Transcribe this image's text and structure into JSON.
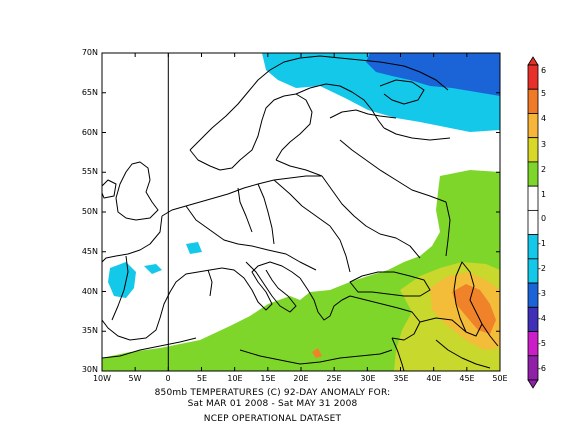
{
  "map": {
    "lat_labels": [
      "70N",
      "65N",
      "60N",
      "55N",
      "50N",
      "45N",
      "40N",
      "35N",
      "30N"
    ],
    "lon_labels": [
      "10W",
      "5W",
      "0",
      "5E",
      "10E",
      "15E",
      "20E",
      "25E",
      "30E",
      "35E",
      "40E",
      "45E",
      "50E"
    ]
  },
  "title": {
    "line1": "850mb TEMPERATURES (C)  92-DAY ANOMALY FOR:",
    "line2": "Sat MAR 01 2008 - Sat MAY 31 2008",
    "line3": "NCEP OPERATIONAL DATASET"
  },
  "colorbar": {
    "labels": [
      "6",
      "5",
      "4",
      "3",
      "2",
      "1",
      "0",
      "-1",
      "-2",
      "-3",
      "-4",
      "-5",
      "-6"
    ],
    "colors": [
      "#e8302a",
      "#f07a28",
      "#f7b53a",
      "#d9d727",
      "#7fd62a",
      "#ffffff",
      "#ffffff",
      "#14c8ea",
      "#14c8ea",
      "#1a64d8",
      "#4030b8",
      "#cc1ec8",
      "#9020a8"
    ]
  },
  "colors": {
    "green": "#7fd62a",
    "yellow": "#c8d82c",
    "gold": "#f3bd3a",
    "orange": "#f0822a",
    "cyan": "#14c8ea",
    "blue": "#1a64d8"
  }
}
